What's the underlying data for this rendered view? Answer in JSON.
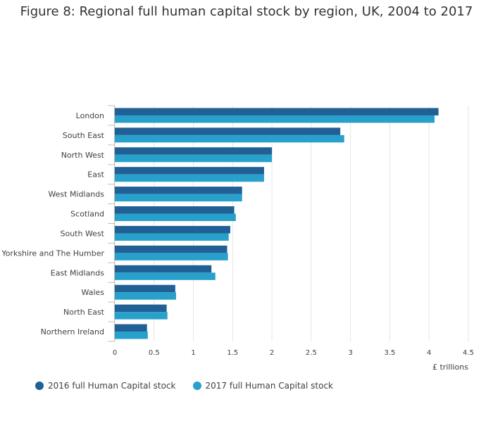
{
  "title": "Figure 8: Regional full human capital stock by region, UK, 2004 to 2017",
  "chart_data": {
    "type": "bar",
    "orientation": "horizontal",
    "categories": [
      "London",
      "South East",
      "North West",
      "East",
      "West Midlands",
      "Scotland",
      "South West",
      "Yorkshire and The Humber",
      "East Midlands",
      "Wales",
      "North East",
      "Northern Ireland"
    ],
    "series": [
      {
        "name": "2016 full Human Capital stock",
        "color": "#206095",
        "values": [
          4.12,
          2.87,
          2.0,
          1.9,
          1.62,
          1.52,
          1.47,
          1.43,
          1.23,
          0.77,
          0.66,
          0.41
        ]
      },
      {
        "name": "2017 full Human Capital stock",
        "color": "#27a0cc",
        "values": [
          4.07,
          2.92,
          2.0,
          1.9,
          1.62,
          1.54,
          1.45,
          1.44,
          1.28,
          0.78,
          0.67,
          0.42
        ]
      }
    ],
    "xlim": [
      0,
      4.5
    ],
    "xticks": [
      "0",
      "0.5",
      "1",
      "1.5",
      "2",
      "2.5",
      "3",
      "3.5",
      "4",
      "4.5"
    ],
    "xlabel": "£ trillions",
    "grid": true,
    "legend_position": "bottom-left"
  }
}
